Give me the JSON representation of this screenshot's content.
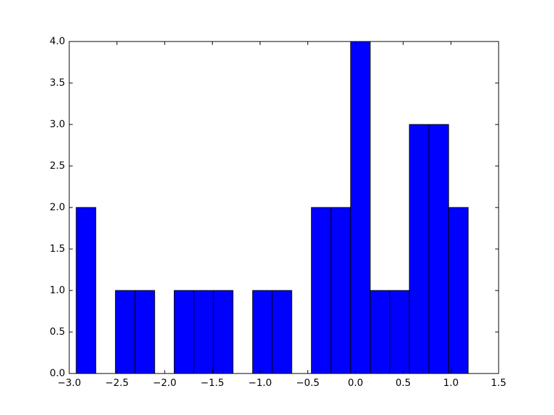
{
  "chart_data": {
    "type": "histogram",
    "bins": [
      -2.927,
      -2.722,
      -2.516,
      -2.311,
      -2.105,
      -1.9,
      -1.695,
      -1.489,
      -1.284,
      -1.078,
      -0.873,
      -0.668,
      -0.462,
      -0.257,
      -0.051,
      0.154,
      0.359,
      0.565,
      0.77,
      0.976,
      1.181
    ],
    "values": [
      2,
      0,
      1,
      1,
      0,
      1,
      1,
      1,
      0,
      1,
      1,
      0,
      2,
      2,
      4,
      1,
      1,
      3,
      3,
      2
    ],
    "color": "#0000ff",
    "edgecolor": "#000000",
    "xlim": [
      -3.0,
      1.5
    ],
    "xticks": [
      {
        "value": -3.0,
        "label": "−3.0"
      },
      {
        "value": -2.5,
        "label": "−2.5"
      },
      {
        "value": -2.0,
        "label": "−2.0"
      },
      {
        "value": -1.5,
        "label": "−1.5"
      },
      {
        "value": -1.0,
        "label": "−1.0"
      },
      {
        "value": -0.5,
        "label": "−0.5"
      },
      {
        "value": 0.0,
        "label": "0.0"
      },
      0.5,
      {
        "value": 1.0,
        "label": "1.0"
      },
      1.5
    ],
    "ylim": [
      0.0,
      4.0
    ],
    "yticks": [
      {
        "value": 0.0,
        "label": "0.0"
      },
      0.5,
      {
        "value": 1.0,
        "label": "1.0"
      },
      1.5,
      {
        "value": 2.0,
        "label": "2.0"
      },
      2.5,
      {
        "value": 3.0,
        "label": "3.0"
      },
      3.5,
      {
        "value": 4.0,
        "label": "4.0"
      }
    ],
    "grid": false
  }
}
